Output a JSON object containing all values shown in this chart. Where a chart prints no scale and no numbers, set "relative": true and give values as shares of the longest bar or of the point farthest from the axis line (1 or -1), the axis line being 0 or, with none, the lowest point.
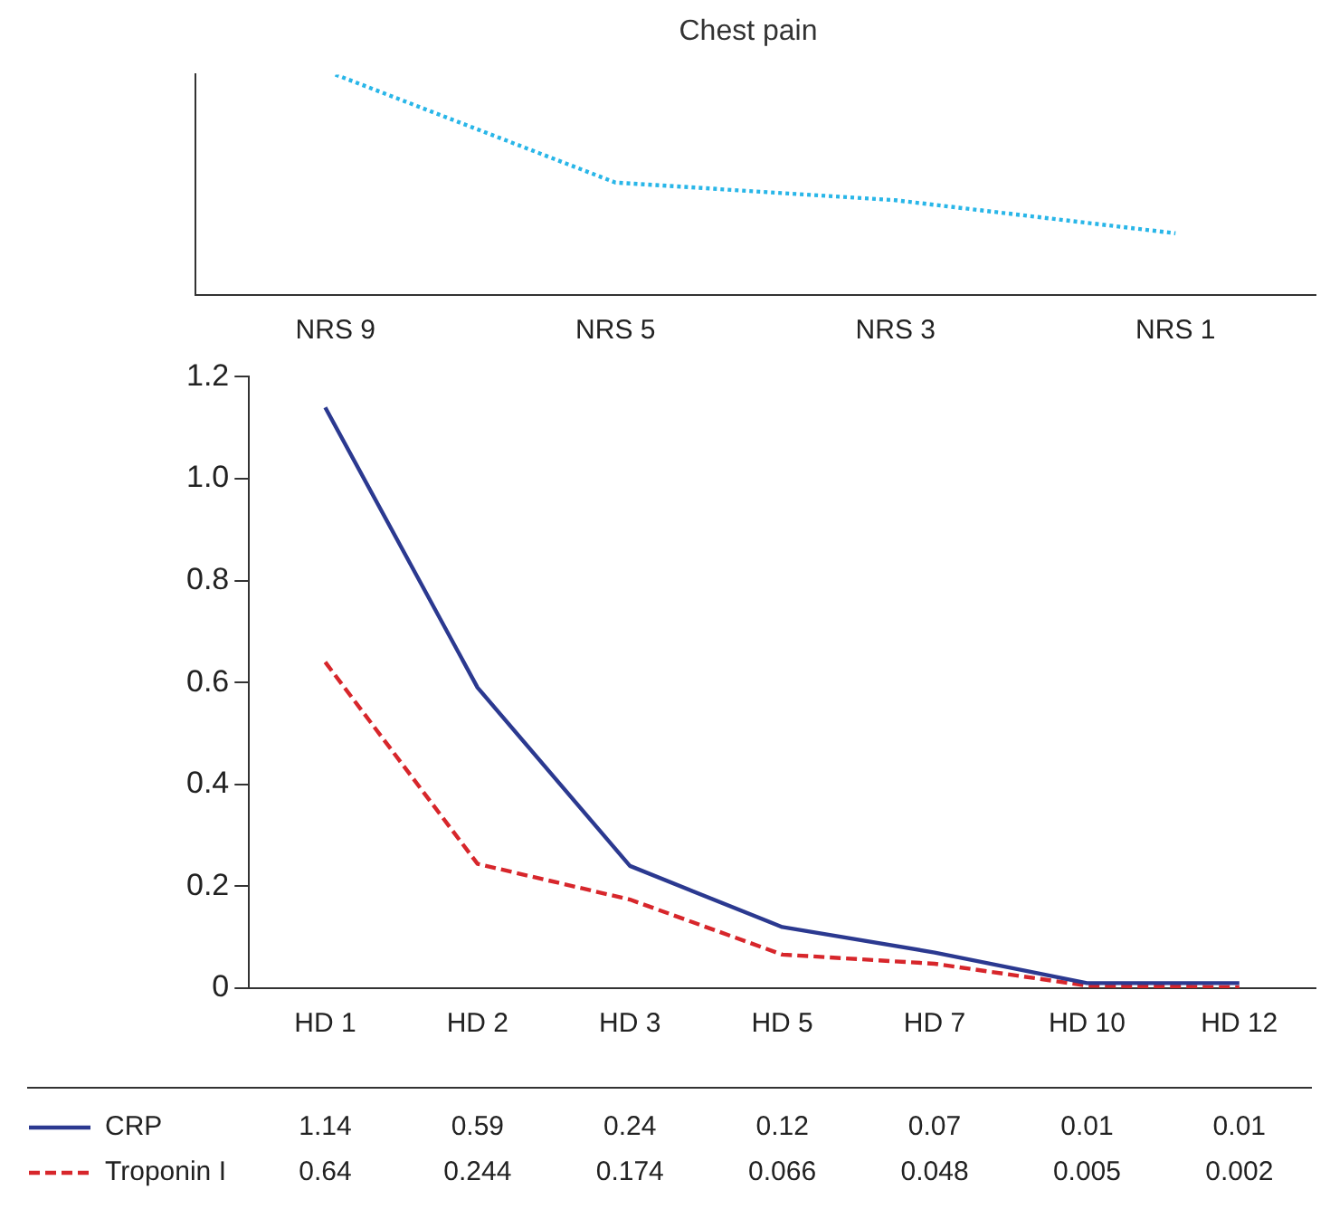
{
  "chart_data": [
    {
      "type": "line",
      "title": "Chest pain",
      "categories": [
        "NRS 9",
        "NRS 5",
        "NRS 3",
        "NRS 1"
      ],
      "relative": true,
      "marker": "none",
      "grid": false,
      "tick_labels": "x",
      "series": [
        {
          "color": "#29b6e8",
          "line_style": "dotted",
          "values": [
            1,
            0.51,
            0.43,
            0.28
          ]
        }
      ]
    },
    {
      "type": "line",
      "categories": [
        "HD 1",
        "HD 2",
        "HD 3",
        "HD 5",
        "HD 7",
        "HD 10",
        "HD 12"
      ],
      "ylim": [
        0,
        1.2
      ],
      "yticks": [
        0,
        0.2,
        0.4,
        0.6,
        0.8,
        {
          "value": 1,
          "label": "1.0"
        },
        1.2
      ],
      "grid": false,
      "marker": "none",
      "data_labels": true,
      "legend": "bottom",
      "series": [
        {
          "name": "CRP",
          "color": "#2b3990",
          "line_style": "solid",
          "values": [
            1.14,
            0.59,
            0.24,
            0.12,
            0.07,
            0.01,
            0.01
          ]
        },
        {
          "name": "Troponin I",
          "color": "#d7262b",
          "line_style": "dashed",
          "values": [
            0.64,
            0.244,
            0.174,
            0.066,
            0.048,
            0.005,
            0.002
          ]
        }
      ]
    }
  ]
}
